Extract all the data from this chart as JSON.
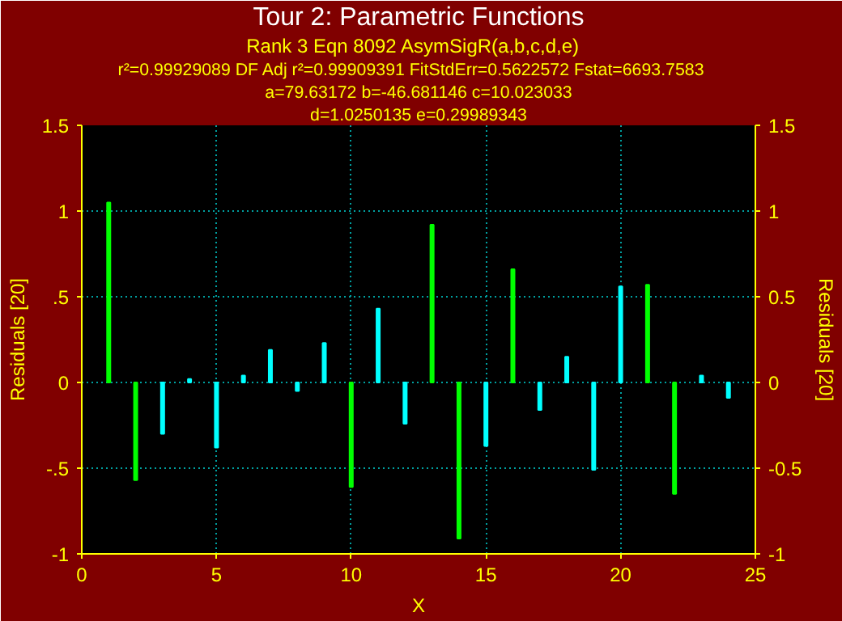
{
  "chart_data": {
    "type": "bar",
    "title": "Tour 2: Parametric Functions",
    "subtitle": "Rank 3  Eqn 8092  AsymSigR(a,b,c,d,e)",
    "annotations": [
      "r²=0.99929089  DF Adj r²=0.99909391  FitStdErr=0.5622572  Fstat=6693.7583",
      "a=79.63172 b=-46.681146 c=10.023033",
      "d=1.0250135 e=0.29989343"
    ],
    "xlabel": "X",
    "ylabel": "Residuals [20]",
    "y2label": "Residuals [20]",
    "x": [
      1,
      2,
      3,
      4,
      5,
      6,
      7,
      8,
      9,
      10,
      11,
      12,
      13,
      14,
      15,
      16,
      17,
      18,
      19,
      20,
      21,
      22,
      23,
      24
    ],
    "series": [
      {
        "color": "#00ff00",
        "values": [
          1.05,
          -0.57,
          null,
          null,
          null,
          null,
          null,
          null,
          null,
          -0.61,
          null,
          null,
          0.92,
          -0.91,
          null,
          0.66,
          null,
          null,
          null,
          null,
          0.57,
          -0.65,
          null,
          null
        ]
      },
      {
        "color": "#00ffff",
        "values": [
          null,
          null,
          -0.3,
          0.02,
          -0.38,
          0.04,
          0.19,
          -0.05,
          0.23,
          null,
          0.43,
          -0.24,
          null,
          null,
          -0.37,
          null,
          -0.16,
          0.15,
          -0.51,
          0.56,
          null,
          null,
          0.04,
          -0.09
        ]
      }
    ],
    "xlim": [
      0,
      25
    ],
    "xticks": [
      0,
      5,
      10,
      15,
      20,
      25
    ],
    "ylim": [
      -1,
      1.5
    ],
    "yticks": [
      -1,
      {
        "value": -0.5,
        "label": "-.5"
      },
      0,
      {
        "value": 0.5,
        "label": ".5"
      },
      1,
      1.5
    ],
    "y2lim": [
      -1,
      1.5
    ],
    "y2ticks": [
      -1,
      -0.5,
      0,
      0.5,
      1,
      1.5
    ],
    "grid": true
  }
}
